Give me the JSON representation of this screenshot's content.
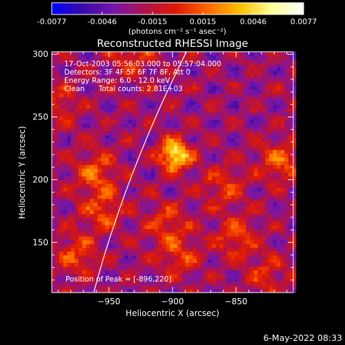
{
  "chart_data": {
    "type": "heatmap",
    "title": "Reconstructed RHESSI Image",
    "xlabel": "Heliocentric X (arcsec)",
    "ylabel": "Heliocentric Y (arcsec)",
    "xlim": [
      -995,
      -805
    ],
    "ylim": [
      110,
      302
    ],
    "xticks": [
      -950,
      -900,
      -850
    ],
    "yticks": [
      150,
      200,
      250,
      300
    ],
    "colorbar": {
      "min": -0.0077,
      "max": 0.0077,
      "ticks": [
        "-0.0077",
        "-0.0046",
        "-0.0015",
        "0.0015",
        "0.0046",
        "0.0077"
      ],
      "unit_label": "(photons cm⁻² s⁻¹ asec⁻²)",
      "colormap": [
        "#0000ff",
        "#3a0aa8",
        "#7a16a8",
        "#b0124a",
        "#e21a00",
        "#ff6a00",
        "#ffc000",
        "#ffff9a",
        "#ffffff"
      ]
    },
    "annotations": [
      "17-Oct-2003 05:56:03.000 to 05:57:04.000",
      "Detectors: 3F 4F 5F 6F 7F 8F, Att 0",
      "Energy Range: 6.0 - 12.0 keV",
      "Clean      Total counts: 2.81E+03"
    ],
    "peak_label": "Position of Peak = [-896,220]",
    "peak": [
      -896,
      220
    ],
    "hotspots": [
      {
        "x": -898,
        "y": 220,
        "amp": 1.0
      },
      {
        "x": -930,
        "y": 300,
        "amp": 0.35
      },
      {
        "x": -990,
        "y": 260,
        "amp": 0.3
      },
      {
        "x": -960,
        "y": 205,
        "amp": 0.45
      },
      {
        "x": -955,
        "y": 175,
        "amp": 0.4
      },
      {
        "x": -905,
        "y": 165,
        "amp": 0.35
      },
      {
        "x": -860,
        "y": 195,
        "amp": 0.35
      },
      {
        "x": -815,
        "y": 215,
        "amp": 0.45
      },
      {
        "x": -850,
        "y": 155,
        "amp": 0.4
      },
      {
        "x": -895,
        "y": 140,
        "amp": 0.35
      },
      {
        "x": -975,
        "y": 140,
        "amp": 0.4
      },
      {
        "x": -825,
        "y": 125,
        "amp": 0.3
      }
    ]
  },
  "footer_date": "6-May-2022 08:33"
}
